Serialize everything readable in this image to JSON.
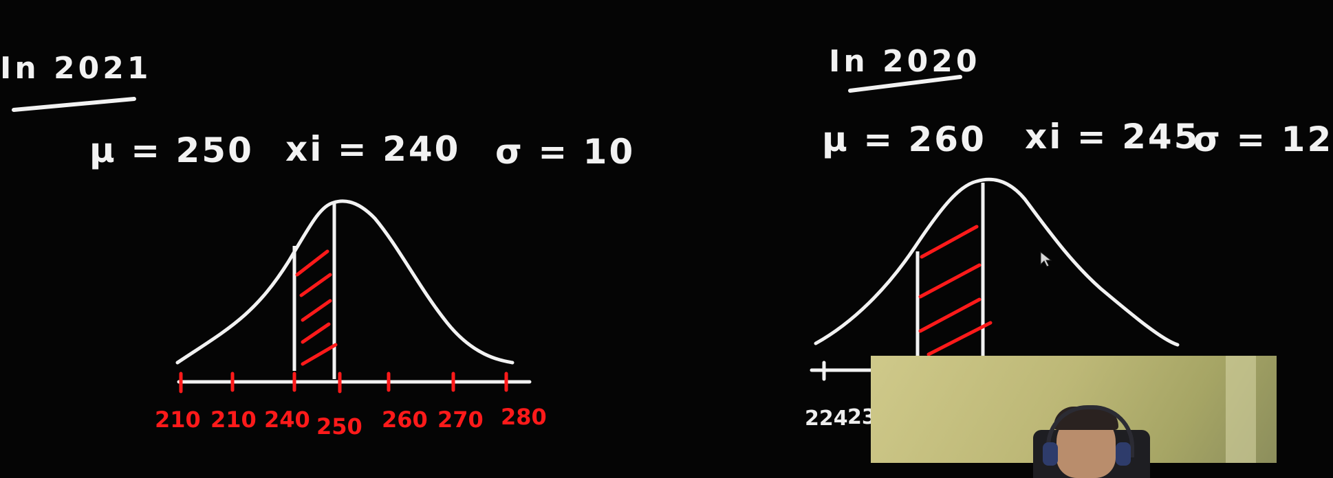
{
  "left_panel": {
    "title": "In 2021",
    "mu": "μ = 250",
    "xi": "xi = 240",
    "sigma": "σ = 10",
    "axis_ticks": [
      "210",
      "210",
      "240",
      "250",
      "260",
      "270",
      "280"
    ]
  },
  "right_panel": {
    "title": "In 2020",
    "mu": "μ = 260",
    "xi": "xi = 245",
    "sigma": "σ = 12",
    "axis_ticks": [
      "224",
      "23"
    ]
  },
  "colors": {
    "background": "#050505",
    "chalk": "#f2f2f2",
    "shade": "#ff1a1a"
  }
}
